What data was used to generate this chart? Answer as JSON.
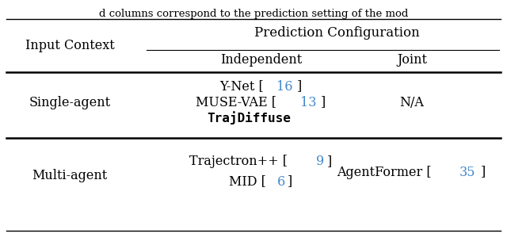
{
  "top_text": "d columns correspond to the prediction setting of the mod",
  "header_main": "Prediction Configuration",
  "header_sub1": "Independent",
  "header_sub2": "Joint",
  "col0_header": "Input Context",
  "row1_label": "Single-agent",
  "row2_label": "Multi-agent",
  "row1_col1_parts": [
    [
      [
        "Y-Net [",
        "black"
      ],
      [
        "16",
        "blue"
      ],
      [
        "]",
        "black"
      ]
    ],
    [
      [
        "MUSE-VAE [",
        "black"
      ],
      [
        "13",
        "blue"
      ],
      [
        "]",
        "black"
      ]
    ],
    [
      [
        "TrajDiffuse",
        "bold"
      ]
    ]
  ],
  "row1_col2": "N/A",
  "row2_col1_parts": [
    [
      [
        "Trajectron++ [",
        "black"
      ],
      [
        "9",
        "blue"
      ],
      [
        "]",
        "black"
      ]
    ],
    [
      [
        "MID [",
        "black"
      ],
      [
        "6",
        "blue"
      ],
      [
        "]",
        "black"
      ]
    ]
  ],
  "row2_col2_parts": [
    [
      "AgentFormer [",
      "black"
    ],
    [
      "35",
      "blue"
    ],
    [
      "]",
      "black"
    ]
  ],
  "blue_color": "#4488CC",
  "black_color": "#000000",
  "bg_color": "#ffffff",
  "fontsize": 11.5
}
